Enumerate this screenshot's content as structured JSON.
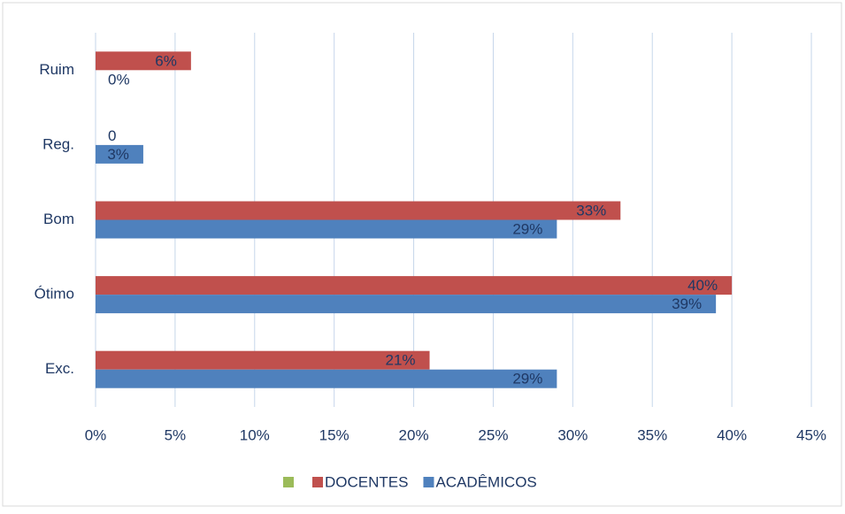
{
  "chart_data": {
    "type": "hbar",
    "categories": [
      "Ruim",
      "Reg.",
      "Bom",
      "Ótimo",
      "Exc."
    ],
    "series": [
      {
        "color": "#9bbb59",
        "values": [
          null,
          null,
          null,
          null,
          null
        ]
      },
      {
        "name": "DOCENTES",
        "color": "#c0504d",
        "values": [
          6,
          0,
          33,
          40,
          21
        ],
        "value_labels": [
          "6%",
          "0",
          "33%",
          "40%",
          "21%"
        ]
      },
      {
        "name": "ACADÊMICOS",
        "color": "#4f81bd",
        "values": [
          0,
          3,
          29,
          39,
          29
        ],
        "value_labels": [
          "0%",
          "3%",
          "29%",
          "39%",
          "29%"
        ]
      }
    ],
    "xlim": [
      0,
      45
    ],
    "xticks": [
      {
        "value": 0,
        "label": "0%"
      },
      {
        "value": 5,
        "label": "5%"
      },
      {
        "value": 10,
        "label": "10%"
      },
      {
        "value": 15,
        "label": "15%"
      },
      {
        "value": 20,
        "label": "20%"
      },
      {
        "value": 25,
        "label": "25%"
      },
      {
        "value": 30,
        "label": "30%"
      },
      {
        "value": 35,
        "label": "35%"
      },
      {
        "value": 40,
        "label": "40%"
      },
      {
        "value": 45,
        "label": "45%"
      }
    ],
    "grid": true,
    "legend": "bottom"
  }
}
